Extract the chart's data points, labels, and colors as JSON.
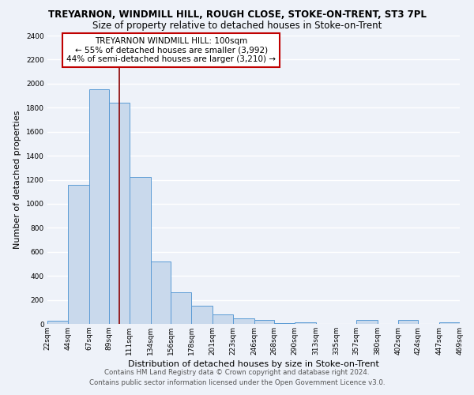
{
  "title": "TREYARNON, WINDMILL HILL, ROUGH CLOSE, STOKE-ON-TRENT, ST3 7PL",
  "subtitle": "Size of property relative to detached houses in Stoke-on-Trent",
  "xlabel": "Distribution of detached houses by size in Stoke-on-Trent",
  "ylabel": "Number of detached properties",
  "bar_edges": [
    22,
    44,
    67,
    89,
    111,
    134,
    156,
    178,
    201,
    223,
    246,
    268,
    290,
    313,
    335,
    357,
    380,
    402,
    424,
    447,
    469
  ],
  "bar_heights": [
    25,
    1155,
    1950,
    1840,
    1220,
    520,
    265,
    150,
    80,
    45,
    35,
    5,
    15,
    0,
    0,
    35,
    0,
    30,
    0,
    10
  ],
  "bar_color": "#c9d9ec",
  "bar_edgecolor": "#5b9bd5",
  "vline_x": 100,
  "vline_color": "#8b0000",
  "annotation_title": "TREYARNON WINDMILL HILL: 100sqm",
  "annotation_line1": "← 55% of detached houses are smaller (3,992)",
  "annotation_line2": "44% of semi-detached houses are larger (3,210) →",
  "annotation_box_edgecolor": "#c00000",
  "ylim": [
    0,
    2400
  ],
  "yticks": [
    0,
    200,
    400,
    600,
    800,
    1000,
    1200,
    1400,
    1600,
    1800,
    2000,
    2200,
    2400
  ],
  "tick_labels": [
    "22sqm",
    "44sqm",
    "67sqm",
    "89sqm",
    "111sqm",
    "134sqm",
    "156sqm",
    "178sqm",
    "201sqm",
    "223sqm",
    "246sqm",
    "268sqm",
    "290sqm",
    "313sqm",
    "335sqm",
    "357sqm",
    "380sqm",
    "402sqm",
    "424sqm",
    "447sqm",
    "469sqm"
  ],
  "footer_line1": "Contains HM Land Registry data © Crown copyright and database right 2024.",
  "footer_line2": "Contains public sector information licensed under the Open Government Licence v3.0.",
  "bg_color": "#eef2f9",
  "grid_color": "#ffffff",
  "title_fontsize": 8.5,
  "subtitle_fontsize": 8.5,
  "axis_label_fontsize": 8,
  "tick_fontsize": 6.5,
  "annotation_fontsize": 7.5,
  "footer_fontsize": 6.2
}
